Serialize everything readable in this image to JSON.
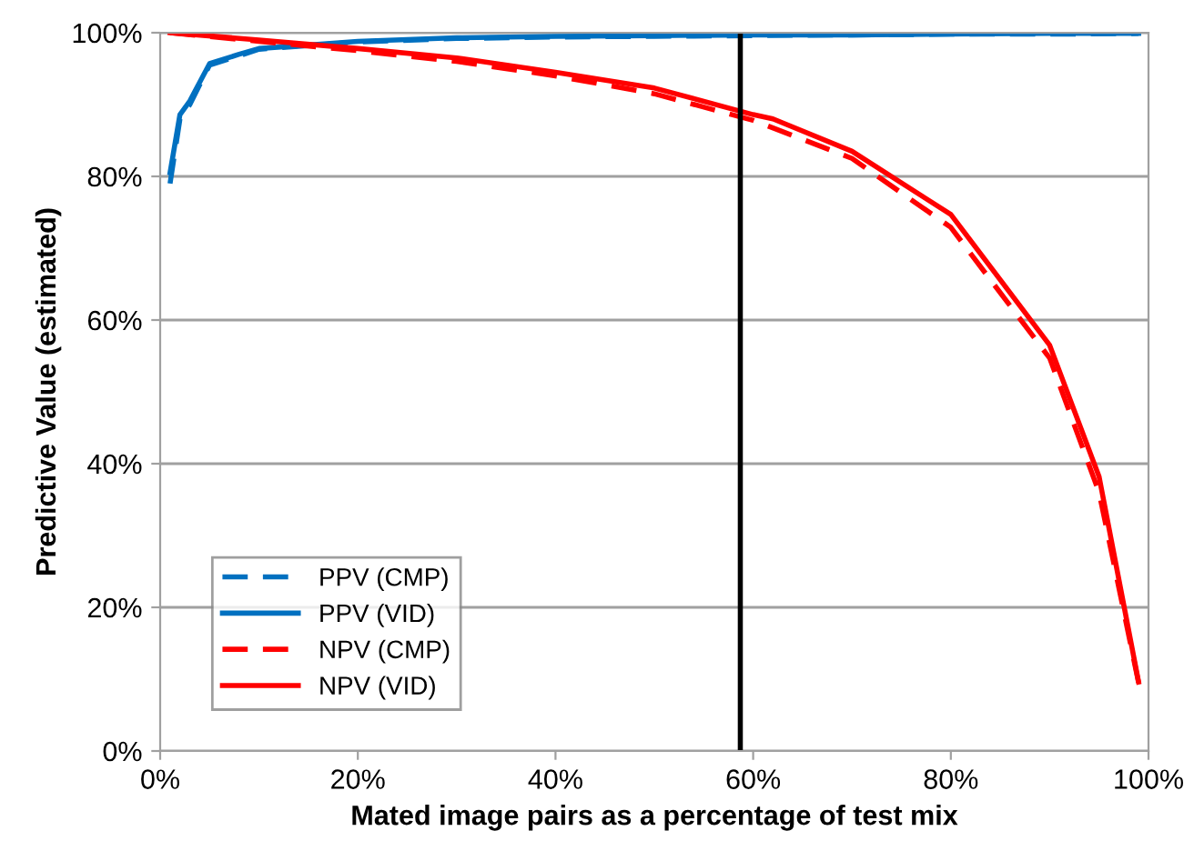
{
  "chart_data": {
    "type": "line",
    "xlabel": "Mated image pairs as a percentage of test mix",
    "ylabel": "Predictive Value (estimated)",
    "series": [
      {
        "name": "PPV (CMP)",
        "color": "#0070c0",
        "line_style": "dashed",
        "x": [
          1,
          2,
          3,
          5,
          8,
          10,
          15,
          20,
          30,
          40,
          50,
          60,
          70,
          80,
          90,
          99
        ],
        "values": [
          79,
          88,
          90,
          95.5,
          96.8,
          97.7,
          98.2,
          98.7,
          99.2,
          99.4,
          99.5,
          99.6,
          99.7,
          99.8,
          99.8,
          99.9
        ]
      },
      {
        "name": "PPV (VID)",
        "color": "#0070c0",
        "line_style": "solid",
        "x": [
          1,
          2,
          3,
          5,
          8,
          10,
          15,
          20,
          30,
          40,
          50,
          60,
          70,
          80,
          90,
          99
        ],
        "values": [
          80.5,
          88.6,
          90.5,
          95.7,
          97,
          97.8,
          98.3,
          98.8,
          99.3,
          99.5,
          99.6,
          99.7,
          99.7,
          99.8,
          99.9,
          99.9
        ]
      },
      {
        "name": "NPV (CMP)",
        "color": "#ff0000",
        "line_style": "dashed",
        "x": [
          1,
          10,
          20,
          30,
          40,
          50,
          60,
          70,
          80,
          90,
          95,
          99
        ],
        "values": [
          100,
          98.8,
          97.5,
          96,
          94,
          91.5,
          87.8,
          82.5,
          72.9,
          54.7,
          36,
          9.5
        ]
      },
      {
        "name": "NPV (VID)",
        "color": "#ff0000",
        "line_style": "solid",
        "x": [
          1,
          10,
          20,
          30,
          40,
          50,
          60,
          62,
          70,
          80,
          90,
          95,
          99
        ],
        "values": [
          100,
          99,
          97.8,
          96.5,
          94.5,
          92.3,
          88.6,
          88,
          83.5,
          74.7,
          56.5,
          38.2,
          9.6
        ]
      }
    ],
    "xlim": [
      0,
      100
    ],
    "ylim": [
      0,
      100
    ],
    "xticks": [
      {
        "value": 0,
        "label": "0%"
      },
      {
        "value": 20,
        "label": "20%"
      },
      {
        "value": 40,
        "label": "40%"
      },
      {
        "value": 60,
        "label": "60%"
      },
      {
        "value": 80,
        "label": "80%"
      },
      {
        "value": 100,
        "label": "100%"
      }
    ],
    "yticks": [
      {
        "value": 0,
        "label": "0%"
      },
      {
        "value": 20,
        "label": "20%"
      },
      {
        "value": 40,
        "label": "40%"
      },
      {
        "value": 60,
        "label": "60%"
      },
      {
        "value": 80,
        "label": "80%"
      },
      {
        "value": 100,
        "label": "100%"
      }
    ],
    "ref_lines": [
      {
        "axis": "x",
        "value": 58.7,
        "color": "#000000"
      }
    ],
    "grid": "y",
    "legend": "bottom left",
    "marker": "none"
  }
}
